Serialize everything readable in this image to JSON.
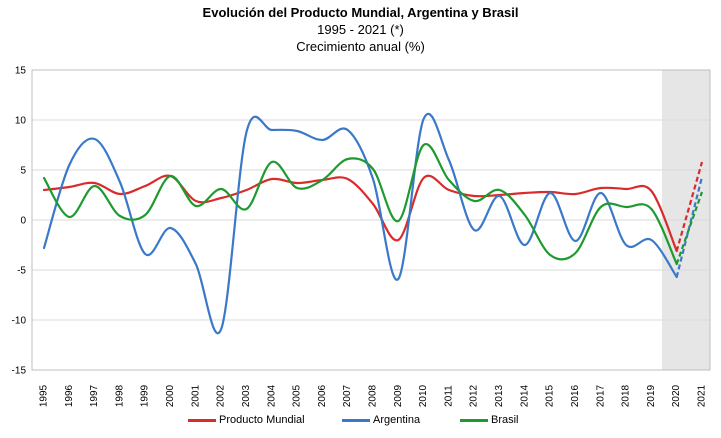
{
  "chart_data": {
    "type": "line",
    "title": "Evolución del Producto Mundial, Argentina y Brasil",
    "subtitle": "1995 - 2021 (*)",
    "ylabel": "Crecimiento anual (%)",
    "xlabel": "",
    "ylim": [
      -15,
      15
    ],
    "yticks": [
      15,
      10,
      5,
      0,
      -5,
      -10,
      -15
    ],
    "categories": [
      "1995",
      "1996",
      "1997",
      "1998",
      "1999",
      "2000",
      "2001",
      "2002",
      "2003",
      "2004",
      "2005",
      "2006",
      "2007",
      "2008",
      "2009",
      "2010",
      "2011",
      "2012",
      "2013",
      "2014",
      "2015",
      "2016",
      "2017",
      "2018",
      "2019",
      "2020",
      "2021"
    ],
    "grid": true,
    "legend_position": "bottom",
    "shaded_range": [
      "2020",
      "2021"
    ],
    "projected_from": "2020",
    "series": [
      {
        "name": "Producto Mundial",
        "color": "#d92b2b",
        "values": [
          3.0,
          3.3,
          3.7,
          2.6,
          3.4,
          4.4,
          1.9,
          2.2,
          3.0,
          4.1,
          3.7,
          4.0,
          4.1,
          1.6,
          -2.0,
          4.2,
          3.0,
          2.4,
          2.5,
          2.7,
          2.8,
          2.6,
          3.2,
          3.1,
          2.9,
          -3.1,
          5.8
        ]
      },
      {
        "name": "Argentina",
        "color": "#3a78c9",
        "values": [
          -2.8,
          5.5,
          8.1,
          3.8,
          -3.4,
          -0.8,
          -4.4,
          -10.9,
          8.8,
          9.0,
          8.9,
          8.0,
          9.0,
          4.1,
          -5.9,
          10.1,
          6.0,
          -1.0,
          2.4,
          -2.5,
          2.7,
          -2.1,
          2.7,
          -2.5,
          -2.0,
          -5.7,
          4.3
        ]
      },
      {
        "name": "Brasil",
        "color": "#1e9a2e",
        "values": [
          4.2,
          0.3,
          3.4,
          0.4,
          0.5,
          4.4,
          1.4,
          3.1,
          1.1,
          5.8,
          3.2,
          4.0,
          6.1,
          5.1,
          -0.1,
          7.5,
          4.0,
          1.9,
          3.0,
          0.5,
          -3.5,
          -3.3,
          1.3,
          1.3,
          1.1,
          -4.4,
          2.8
        ]
      }
    ]
  }
}
